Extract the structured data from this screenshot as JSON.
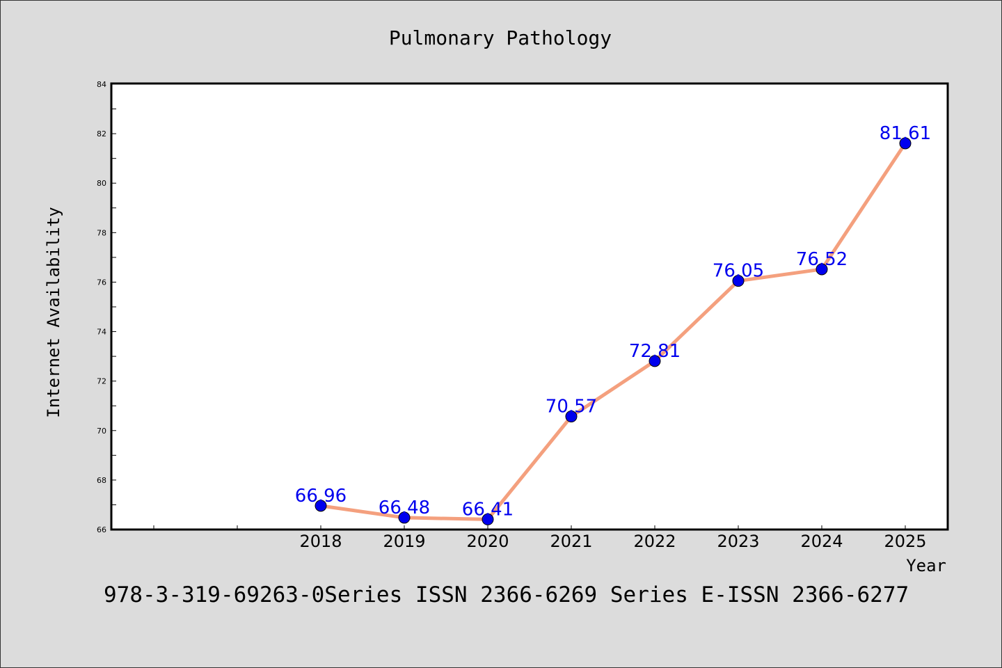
{
  "chart_data": {
    "type": "line",
    "title": "Pulmonary Pathology",
    "xlabel": "Year",
    "ylabel": "Internet Availability",
    "x": [
      "2018",
      "2019",
      "2020",
      "2021",
      "2022",
      "2023",
      "2024",
      "2025"
    ],
    "series": [
      {
        "values": [
          66.96,
          66.48,
          66.41,
          70.57,
          72.81,
          76.05,
          76.52,
          81.61
        ],
        "labels": [
          "66.96",
          "66.48",
          "66.41",
          "70.57",
          "72.81",
          "76.05",
          "76.52",
          "81.61"
        ]
      }
    ],
    "yticks": [
      "66",
      "68",
      "70",
      "72",
      "74",
      "76",
      "78",
      "80",
      "82",
      "84"
    ],
    "ylim": [
      66,
      84
    ],
    "grid": false,
    "colors": {
      "line": "#f4a07e",
      "marker": "#0000ee",
      "label": "#0000ee"
    }
  },
  "footer": "978-3-319-69263-0Series ISSN 2366-6269 Series E-ISSN 2366-6277"
}
